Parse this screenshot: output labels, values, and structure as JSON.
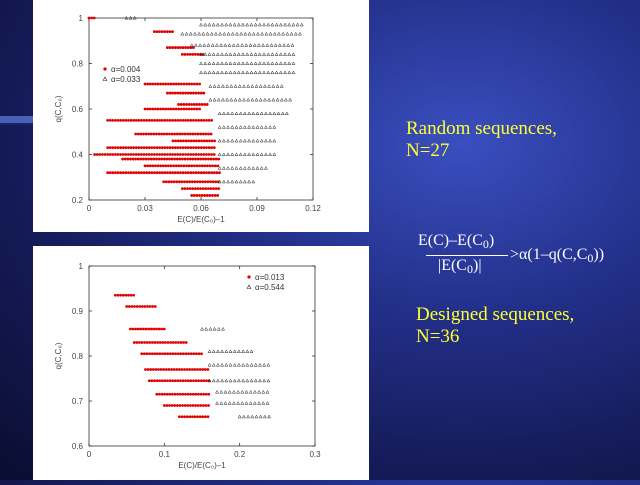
{
  "labels": {
    "random_line1": "Random sequences,",
    "random_line2": "N=27",
    "designed_line1": "Designed sequences,",
    "designed_line2": "N=36"
  },
  "formula": {
    "num_a": "E(C)–E(C",
    "num_sub": "0",
    "num_b": ")",
    "den_a": "|E(C",
    "den_sub": "0",
    "den_b": ")|",
    "rhs_a": ">α(1–q(C,C",
    "rhs_sub": "0",
    "rhs_b": "))"
  },
  "chart_data": [
    {
      "type": "scatter",
      "xlabel": "E(C)/E(C₀)–1",
      "ylabel": "q(C,C₀)",
      "xlim": [
        0,
        0.12
      ],
      "ylim": [
        0.2,
        1
      ],
      "xticks": [
        0,
        0.03,
        0.06,
        0.09,
        0.12
      ],
      "xtick_labels": [
        "0",
        "0.03",
        "0.06",
        "0.09",
        "0.12"
      ],
      "yticks": [
        0.2,
        0.4,
        0.6,
        0.8,
        1
      ],
      "ytick_labels": [
        "0.2",
        "0.4",
        "0.6",
        "0.8",
        "1"
      ],
      "legend_placement": "top-left",
      "series": [
        {
          "name": "α=0.004",
          "color": "#e00000",
          "marker": "dot",
          "bands": [
            {
              "y": 1.0,
              "x0": 0.0,
              "x1": 0.003
            },
            {
              "y": 0.94,
              "x0": 0.035,
              "x1": 0.046
            },
            {
              "y": 0.87,
              "x0": 0.042,
              "x1": 0.056
            },
            {
              "y": 0.84,
              "x0": 0.05,
              "x1": 0.062
            },
            {
              "y": 0.71,
              "x0": 0.03,
              "x1": 0.06
            },
            {
              "y": 0.67,
              "x0": 0.042,
              "x1": 0.062
            },
            {
              "y": 0.62,
              "x0": 0.048,
              "x1": 0.064
            },
            {
              "y": 0.6,
              "x0": 0.03,
              "x1": 0.06
            },
            {
              "y": 0.55,
              "x0": 0.01,
              "x1": 0.066
            },
            {
              "y": 0.49,
              "x0": 0.025,
              "x1": 0.066
            },
            {
              "y": 0.46,
              "x0": 0.045,
              "x1": 0.068
            },
            {
              "y": 0.43,
              "x0": 0.01,
              "x1": 0.068
            },
            {
              "y": 0.4,
              "x0": 0.003,
              "x1": 0.068
            },
            {
              "y": 0.38,
              "x0": 0.018,
              "x1": 0.07
            },
            {
              "y": 0.35,
              "x0": 0.03,
              "x1": 0.07
            },
            {
              "y": 0.32,
              "x0": 0.01,
              "x1": 0.07
            },
            {
              "y": 0.28,
              "x0": 0.04,
              "x1": 0.07
            },
            {
              "y": 0.25,
              "x0": 0.05,
              "x1": 0.07
            },
            {
              "y": 0.22,
              "x0": 0.055,
              "x1": 0.07
            }
          ]
        },
        {
          "name": "α=0.033",
          "color": "#222222",
          "marker": "triangle",
          "bands": [
            {
              "y": 1.0,
              "x0": 0.02,
              "x1": 0.025
            },
            {
              "y": 0.97,
              "x0": 0.06,
              "x1": 0.115
            },
            {
              "y": 0.93,
              "x0": 0.05,
              "x1": 0.115
            },
            {
              "y": 0.88,
              "x0": 0.055,
              "x1": 0.11
            },
            {
              "y": 0.84,
              "x0": 0.06,
              "x1": 0.11
            },
            {
              "y": 0.8,
              "x0": 0.06,
              "x1": 0.11
            },
            {
              "y": 0.76,
              "x0": 0.06,
              "x1": 0.11
            },
            {
              "y": 0.7,
              "x0": 0.065,
              "x1": 0.105
            },
            {
              "y": 0.64,
              "x0": 0.065,
              "x1": 0.108
            },
            {
              "y": 0.58,
              "x0": 0.07,
              "x1": 0.108
            },
            {
              "y": 0.52,
              "x0": 0.07,
              "x1": 0.1
            },
            {
              "y": 0.46,
              "x0": 0.07,
              "x1": 0.1
            },
            {
              "y": 0.4,
              "x0": 0.07,
              "x1": 0.1
            },
            {
              "y": 0.34,
              "x0": 0.07,
              "x1": 0.095
            },
            {
              "y": 0.28,
              "x0": 0.07,
              "x1": 0.09
            }
          ]
        }
      ]
    },
    {
      "type": "scatter",
      "xlabel": "E(C)/E(C₀)–1",
      "ylabel": "q(C,C₀)",
      "xlim": [
        0,
        0.3
      ],
      "ylim": [
        0.6,
        1
      ],
      "xticks": [
        0,
        0.1,
        0.2,
        0.3
      ],
      "xtick_labels": [
        "0",
        "0.1",
        "0.2",
        "0.3"
      ],
      "yticks": [
        0.6,
        0.7,
        0.8,
        0.9,
        1
      ],
      "ytick_labels": [
        "0.6",
        "0.7",
        "0.8",
        "0.9",
        "1"
      ],
      "legend_placement": "top-right",
      "series": [
        {
          "name": "α=0.013",
          "color": "#e00000",
          "marker": "dot",
          "bands": [
            {
              "y": 0.935,
              "x0": 0.035,
              "x1": 0.06
            },
            {
              "y": 0.91,
              "x0": 0.05,
              "x1": 0.09
            },
            {
              "y": 0.86,
              "x0": 0.055,
              "x1": 0.1
            },
            {
              "y": 0.83,
              "x0": 0.06,
              "x1": 0.13
            },
            {
              "y": 0.805,
              "x0": 0.07,
              "x1": 0.15
            },
            {
              "y": 0.77,
              "x0": 0.075,
              "x1": 0.16
            },
            {
              "y": 0.745,
              "x0": 0.08,
              "x1": 0.16
            },
            {
              "y": 0.715,
              "x0": 0.09,
              "x1": 0.16
            },
            {
              "y": 0.69,
              "x0": 0.1,
              "x1": 0.16
            },
            {
              "y": 0.665,
              "x0": 0.12,
              "x1": 0.16
            }
          ]
        },
        {
          "name": "α=0.544",
          "color": "#222222",
          "marker": "triangle",
          "bands": [
            {
              "y": 0.86,
              "x0": 0.15,
              "x1": 0.18
            },
            {
              "y": 0.81,
              "x0": 0.16,
              "x1": 0.22
            },
            {
              "y": 0.78,
              "x0": 0.16,
              "x1": 0.24
            },
            {
              "y": 0.745,
              "x0": 0.16,
              "x1": 0.24
            },
            {
              "y": 0.72,
              "x0": 0.17,
              "x1": 0.24
            },
            {
              "y": 0.695,
              "x0": 0.17,
              "x1": 0.24
            },
            {
              "y": 0.665,
              "x0": 0.2,
              "x1": 0.24
            }
          ]
        }
      ]
    }
  ]
}
